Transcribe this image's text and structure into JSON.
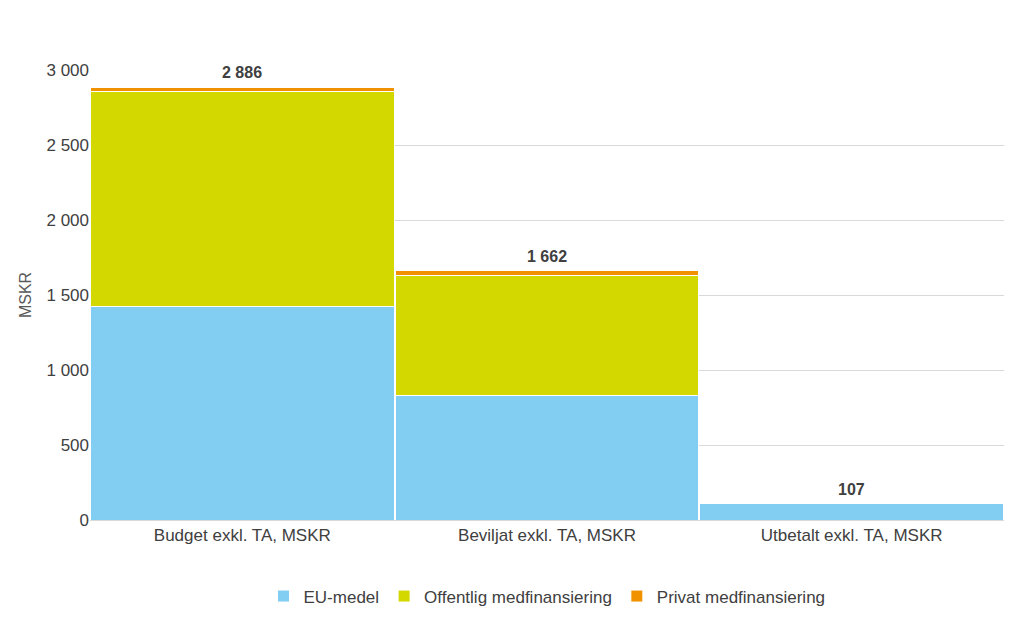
{
  "chart_data": {
    "type": "bar",
    "stacked": true,
    "y_label": "MSKR",
    "categories": [
      "Budget exkl. TA, MSKR",
      "Beviljat exkl. TA, MSKR",
      "Utbetalt exkl. TA, MSKR"
    ],
    "series": [
      {
        "name": "EU-medel",
        "color": "#82cef3",
        "values": [
          1425,
          830,
          107
        ]
      },
      {
        "name": "Offentlig medfinansiering",
        "color": "#d3d800",
        "values": [
          1435,
          800,
          0
        ]
      },
      {
        "name": "Privat medfinansiering",
        "color": "#f29100",
        "values": [
          26,
          32,
          0
        ]
      }
    ],
    "totals": [
      2886,
      1662,
      107
    ],
    "total_labels": [
      "2 886",
      "1 662",
      "107"
    ],
    "ylim": [
      0,
      3000
    ],
    "yticks": [
      0,
      500,
      {
        "value": 1000,
        "label": "1 000"
      },
      {
        "value": 1500,
        "label": "1 500"
      },
      {
        "value": 2000,
        "label": "2 000"
      },
      {
        "value": 2500,
        "label": "2 500"
      },
      {
        "value": 3000,
        "label": "3 000"
      }
    ],
    "grid": true,
    "legend": "bottom"
  }
}
